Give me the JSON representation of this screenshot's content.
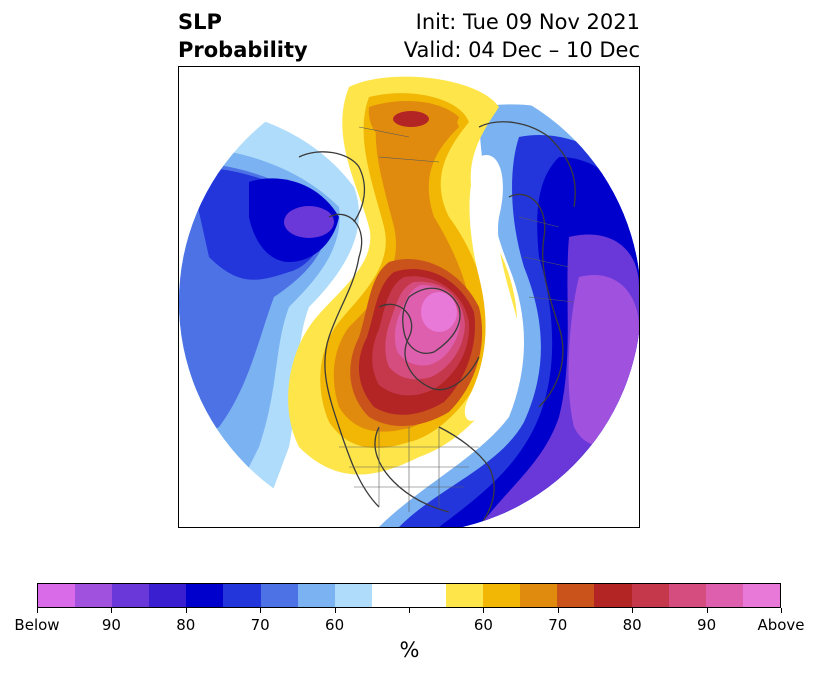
{
  "header": {
    "title_line1": "SLP",
    "title_line2": "Probability",
    "init": "Init: Tue 09 Nov 2021",
    "valid": "Valid: 04 Dec – 10 Dec"
  },
  "map": {
    "projection": "north-polar-stereographic",
    "field": "sea-level-pressure-probability",
    "colors": {
      "below_high": "#7b40d8",
      "below_mid": "#2f2fd0",
      "below_low": "#6aa8ee",
      "neutral": "#ffffff",
      "above_low": "#f5c400",
      "above_mid": "#c0392b",
      "above_high": "#e870d8",
      "coastline": "#3a3a3a"
    }
  },
  "colorbar": {
    "unit": "%",
    "colors": [
      "#d96be8",
      "#a052df",
      "#6a38d9",
      "#3a1fd1",
      "#0000cc",
      "#2336dc",
      "#4d72e6",
      "#7ab2f2",
      "#aedcfa",
      "#ffffff",
      "#ffffff",
      "#fee64a",
      "#f2b705",
      "#e08b0e",
      "#c9531b",
      "#b32425",
      "#c5384b",
      "#d54d7e",
      "#de5fae",
      "#e879d9"
    ],
    "labels": [
      "Below",
      "90",
      "80",
      "70",
      "60",
      "60",
      "70",
      "80",
      "90",
      "Above"
    ]
  }
}
